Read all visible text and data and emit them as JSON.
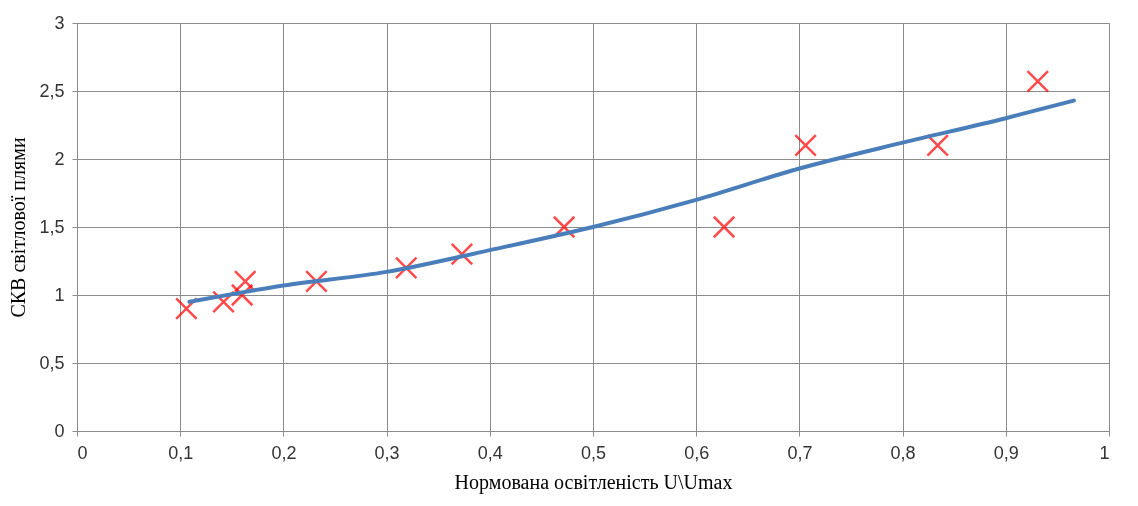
{
  "chart_data": {
    "type": "scatter",
    "xlabel": "Нормована освітленість U\\Umax",
    "ylabel": "СКВ світлової плями",
    "series": [
      {
        "color": "#ff0000",
        "marker": "cross",
        "x": [
          0.106,
          0.142,
          0.16,
          0.163,
          0.232,
          0.319,
          0.373,
          0.472,
          0.627,
          0.706,
          0.834,
          0.931
        ],
        "values": [
          0.9,
          0.95,
          1.0,
          1.1,
          1.1,
          1.2,
          1.3,
          1.5,
          1.5,
          2.1,
          2.1,
          2.57
        ]
      },
      {
        "type": "line",
        "color": "#4a7ebb",
        "x": [
          0.109,
          0.2,
          0.3,
          0.4,
          0.5,
          0.6,
          0.7,
          0.8,
          0.9,
          0.966
        ],
        "values": [
          0.95,
          1.07,
          1.17,
          1.33,
          1.5,
          1.7,
          1.93,
          2.12,
          2.3,
          2.43
        ]
      }
    ],
    "xlim": [
      0,
      1
    ],
    "xticks": [
      0,
      {
        "value": 0.1,
        "label": "0,1"
      },
      {
        "value": 0.2,
        "label": "0,2"
      },
      {
        "value": 0.3,
        "label": "0,3"
      },
      {
        "value": 0.4,
        "label": "0,4"
      },
      {
        "value": 0.5,
        "label": "0,5"
      },
      {
        "value": 0.6,
        "label": "0,6"
      },
      {
        "value": 0.7,
        "label": "0,7"
      },
      {
        "value": 0.8,
        "label": "0,8"
      },
      {
        "value": 0.9,
        "label": "0,9"
      },
      1
    ],
    "ylim": [
      0,
      3
    ],
    "yticks": [
      0,
      {
        "value": 0.5,
        "label": "0,5"
      },
      1,
      {
        "value": 1.5,
        "label": "1,5"
      },
      2,
      {
        "value": 2.5,
        "label": "2,5"
      },
      3
    ],
    "grid": true
  }
}
